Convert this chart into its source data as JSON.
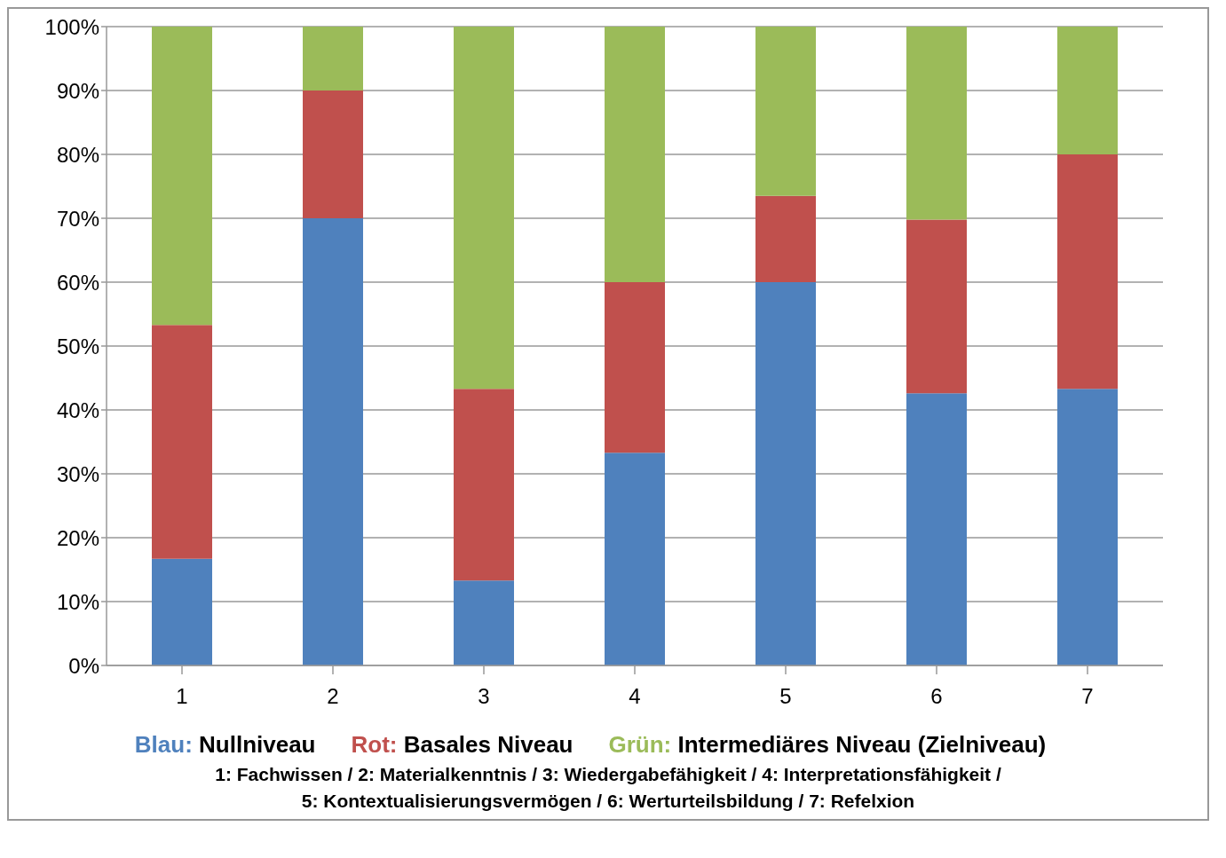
{
  "chart_data": {
    "type": "bar",
    "stacked": true,
    "categories": [
      "1",
      "2",
      "3",
      "4",
      "5",
      "6",
      "7"
    ],
    "series": [
      {
        "name": "Blau: Nullniveau",
        "color": "#4f81bd",
        "values": [
          16.7,
          70,
          13.3,
          33.3,
          60,
          42.6,
          43.3
        ]
      },
      {
        "name": "Rot: Basales Niveau",
        "color": "#c0504d",
        "values": [
          36.6,
          20,
          30,
          26.7,
          13.5,
          27.2,
          36.7
        ]
      },
      {
        "name": "Grün: Intermediäres Niveau (Zielniveau)",
        "color": "#9bbb59",
        "values": [
          46.7,
          10,
          56.7,
          40,
          26.5,
          30.2,
          20
        ]
      }
    ],
    "ylim": [
      0,
      100
    ],
    "yticks": [
      {
        "value": 0,
        "label": "0%"
      },
      {
        "value": 10,
        "label": "10%"
      },
      {
        "value": 20,
        "label": "20%"
      },
      {
        "value": 30,
        "label": "30%"
      },
      {
        "value": 40,
        "label": "40%"
      },
      {
        "value": 50,
        "label": "50%"
      },
      {
        "value": 60,
        "label": "60%"
      },
      {
        "value": 70,
        "label": "70%"
      },
      {
        "value": 80,
        "label": "80%"
      },
      {
        "value": 90,
        "label": "90%"
      },
      {
        "value": 100,
        "label": "100%"
      }
    ],
    "grid": "y",
    "legend": "bottom",
    "annotations": [
      "1: Fachwissen / 2: Materialkenntnis / 3: Wiedergabefähigkeit / 4: Interpretationsfähigkeit /",
      "5: Kontextualisierungsvermögen /  6: Werturteilsbildung / 7: Refelxion"
    ]
  }
}
